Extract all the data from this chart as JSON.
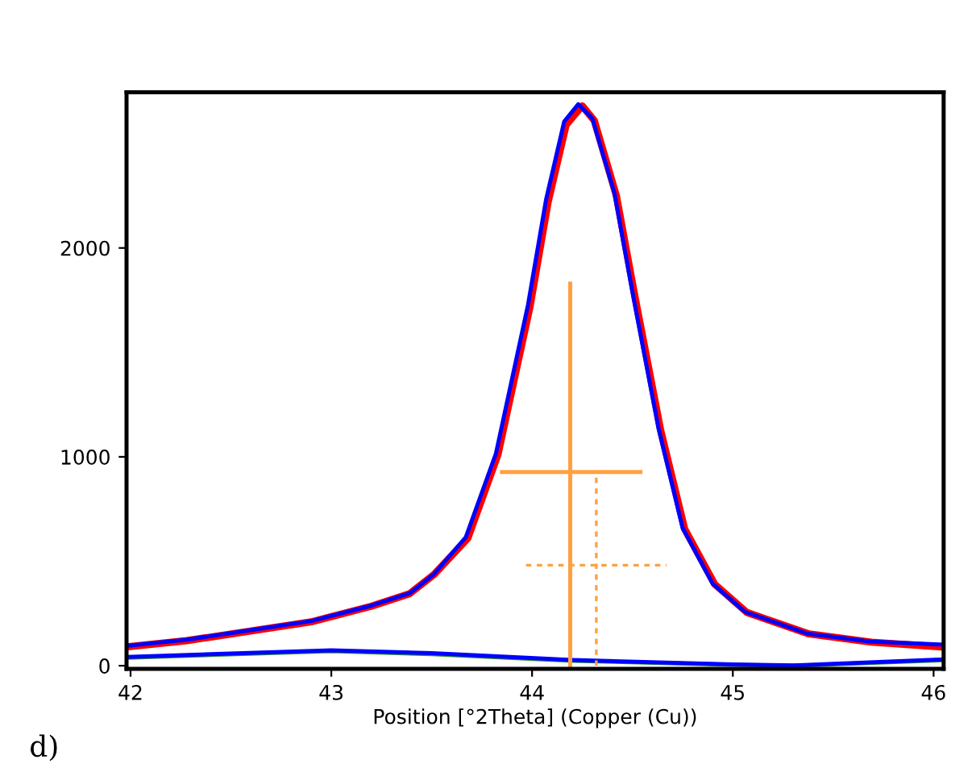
{
  "chart_data": {
    "type": "line",
    "xlabel": "Position [°2Theta] (Copper (Cu))",
    "annotations": [
      "d)"
    ],
    "xlim": [
      41.98,
      46.05
    ],
    "ylim": [
      -15,
      2745
    ],
    "xticks": [
      42,
      43,
      44,
      45,
      46
    ],
    "yticks": [
      0,
      1000,
      2000
    ],
    "grid": false,
    "legend": false,
    "series": [
      {
        "color": "#ff0000",
        "x": [
          41.98,
          42.28,
          42.59,
          42.9,
          43.2,
          43.39,
          43.51,
          43.68,
          43.83,
          43.99,
          44.08,
          44.17,
          44.25,
          44.31,
          44.42,
          44.51,
          44.64,
          44.76,
          44.91,
          45.07,
          45.38,
          45.69,
          46.05
        ],
        "values": [
          90,
          120,
          165,
          210,
          285,
          345,
          435,
          610,
          1010,
          1720,
          2220,
          2590,
          2680,
          2610,
          2250,
          1780,
          1130,
          655,
          390,
          255,
          152,
          113,
          89
        ]
      },
      {
        "color": "#0000ff",
        "x": [
          41.98,
          42.28,
          42.59,
          42.9,
          43.2,
          43.39,
          43.51,
          43.67,
          43.82,
          43.98,
          44.07,
          44.16,
          44.23,
          44.3,
          44.41,
          44.5,
          44.63,
          44.75,
          44.9,
          45.06,
          45.37,
          45.68,
          46.05
        ],
        "values": [
          95,
          125,
          169,
          214,
          288,
          347,
          437,
          615,
          1016,
          1729,
          2233,
          2605,
          2688,
          2620,
          2263,
          1788,
          1135,
          659,
          392,
          258,
          154,
          116,
          101
        ]
      },
      {
        "color": "#2e8b2e",
        "x": [
          41.98,
          43.0,
          43.5,
          44.2,
          45.0,
          45.3,
          46.05
        ],
        "values": [
          38,
          70,
          55,
          24,
          4,
          0,
          26
        ]
      },
      {
        "color": "#0000ff",
        "x": [
          41.98,
          43.0,
          43.5,
          44.2,
          45.0,
          45.3,
          46.05
        ],
        "values": [
          42,
          74,
          60,
          27,
          6,
          1,
          30
        ]
      },
      {
        "color": "#ffa040",
        "x": [
          44.19,
          44.19
        ],
        "values": [
          0,
          1829
        ]
      },
      {
        "color": "#ffa040",
        "x": [
          43.85,
          44.54
        ],
        "values": [
          927,
          927
        ]
      },
      {
        "color": "#ffa040",
        "line_style": "dotted",
        "x": [
          44.32,
          44.32
        ],
        "values": [
          0,
          915
        ]
      },
      {
        "color": "#ffa040",
        "line_style": "dotted",
        "x": [
          43.97,
          44.67
        ],
        "values": [
          481,
          481
        ]
      }
    ]
  }
}
